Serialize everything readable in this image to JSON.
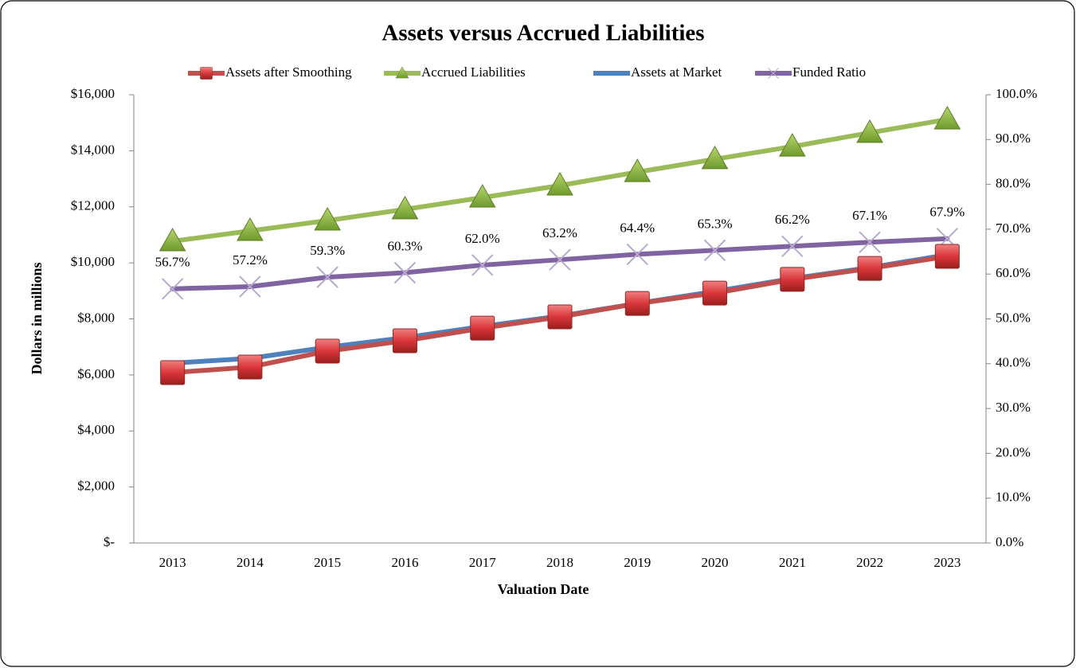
{
  "chart_data": {
    "type": "line",
    "title": "Assets versus Accrued Liabilities",
    "xlabel": "Valuation Date",
    "ylabel": "Dollars in millions",
    "legend": "top",
    "categories": [
      "2013",
      "2014",
      "2015",
      "2016",
      "2017",
      "2018",
      "2019",
      "2020",
      "2021",
      "2022",
      "2023"
    ],
    "ylim": [
      0,
      16000
    ],
    "yticks": [
      {
        "value": 0,
        "label": "$-"
      },
      {
        "value": 2000,
        "label": "$2,000"
      },
      {
        "value": 4000,
        "label": "$4,000"
      },
      {
        "value": 6000,
        "label": "$6,000"
      },
      {
        "value": 8000,
        "label": "$8,000"
      },
      {
        "value": 10000,
        "label": "$10,000"
      },
      {
        "value": 12000,
        "label": "$12,000"
      },
      {
        "value": 14000,
        "label": "$14,000"
      },
      {
        "value": 16000,
        "label": "$16,000"
      }
    ],
    "y2lim": [
      0,
      100
    ],
    "y2ticks": [
      {
        "value": 0,
        "label": "0.0%"
      },
      {
        "value": 10,
        "label": "10.0%"
      },
      {
        "value": 20,
        "label": "20.0%"
      },
      {
        "value": 30,
        "label": "30.0%"
      },
      {
        "value": 40,
        "label": "40.0%"
      },
      {
        "value": 50,
        "label": "50.0%"
      },
      {
        "value": 60,
        "label": "60.0%"
      },
      {
        "value": 70,
        "label": "70.0%"
      },
      {
        "value": 80,
        "label": "80.0%"
      },
      {
        "value": 90,
        "label": "90.0%"
      },
      {
        "value": 100,
        "label": "100.0%"
      }
    ],
    "series": [
      {
        "name": "Assets after Smoothing",
        "color": "#c0504d",
        "marker": "square",
        "values": [
          6080,
          6280,
          6850,
          7220,
          7670,
          8070,
          8550,
          8920,
          9410,
          9800,
          10230
        ]
      },
      {
        "name": "Accrued Liabilities",
        "color": "#9bbb59",
        "marker": "triangle",
        "values": [
          10770,
          11140,
          11510,
          11910,
          12330,
          12760,
          13240,
          13700,
          14150,
          14640,
          15120
        ]
      },
      {
        "name": "Assets at Market",
        "color": "#4f81bd",
        "marker": "none",
        "values": [
          6420,
          6590,
          6990,
          7330,
          7730,
          8100,
          8550,
          8980,
          9440,
          9830,
          10290
        ]
      },
      {
        "name": "Funded Ratio",
        "color": "#8064a2",
        "marker": "x",
        "axis": "y2",
        "values": [
          56.7,
          57.2,
          59.3,
          60.3,
          62.0,
          63.2,
          64.4,
          65.3,
          66.2,
          67.1,
          67.9
        ],
        "value_labels": [
          "56.7%",
          "57.2%",
          "59.3%",
          "60.3%",
          "62.0%",
          "63.2%",
          "64.4%",
          "65.3%",
          "66.2%",
          "67.1%",
          "67.9%"
        ]
      }
    ]
  }
}
